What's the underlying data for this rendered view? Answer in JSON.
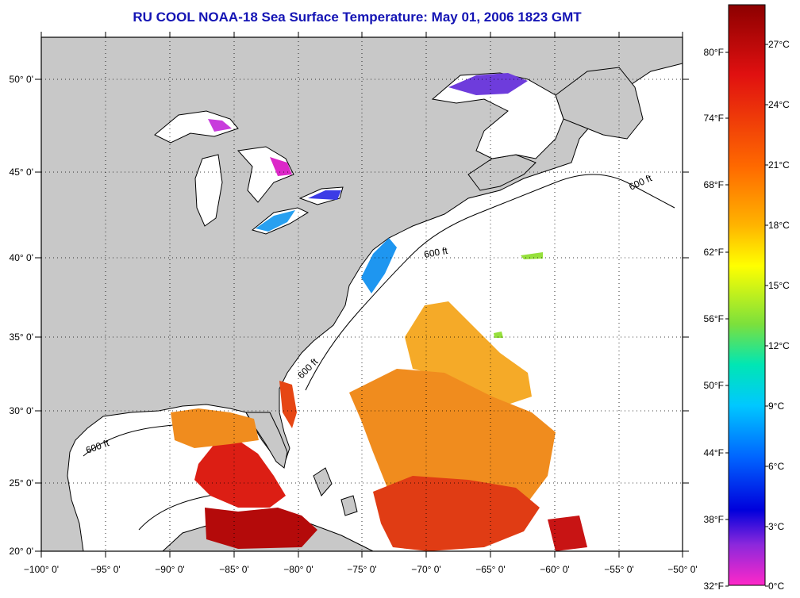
{
  "title": "RU COOL  NOAA-18  Sea Surface Temperature:  May 01, 2006 1823 GMT",
  "map": {
    "lon_ticks": [
      "−100° 0'",
      "−95° 0'",
      "−90° 0'",
      "−85° 0'",
      "−80° 0'",
      "−75° 0'",
      "−70° 0'",
      "−65° 0'",
      "−60° 0'",
      "−55° 0'",
      "−50° 0'"
    ],
    "lat_ticks": [
      "50° 0'",
      "45° 0'",
      "40° 0'",
      "35° 0'",
      "30° 0'",
      "25° 0'",
      "20° 0'"
    ],
    "depth_labels": [
      "600 ft"
    ],
    "colors": {
      "land": "#c8c8c8",
      "water": "#ffffff",
      "coast": "#000000",
      "gulf_warm": "#dc1e14",
      "gulf_hot": "#b40a0a",
      "atlantic_mid": "#f08c1e",
      "atlantic_warm": "#f5aa28",
      "shelf_cool": "#1e96f0",
      "lakes_cold": "#8c28dc"
    }
  },
  "colorbar": {
    "fahrenheit": [
      "80°F",
      "74°F",
      "68°F",
      "62°F",
      "56°F",
      "50°F",
      "44°F",
      "38°F",
      "32°F"
    ],
    "celsius": [
      "27°C",
      "24°C",
      "21°C",
      "18°C",
      "15°C",
      "12°C",
      "9°C",
      "6°C",
      "3°C",
      "0°C"
    ]
  }
}
